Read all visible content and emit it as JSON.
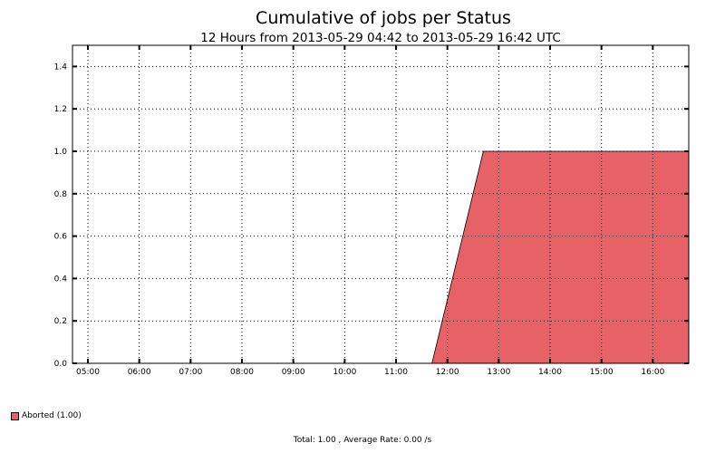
{
  "chart_data": {
    "type": "area",
    "title": "Cumulative of jobs per Status",
    "subtitle": "12 Hours from 2013-05-29 04:42 to 2013-05-29 16:42 UTC",
    "xlabel": "",
    "ylabel": "",
    "x_ticks": [
      "05:00",
      "06:00",
      "07:00",
      "08:00",
      "09:00",
      "10:00",
      "11:00",
      "12:00",
      "13:00",
      "14:00",
      "15:00",
      "16:00"
    ],
    "x_range_hours": [
      4.7,
      16.7
    ],
    "ylim": [
      0,
      1.5
    ],
    "y_ticks": [
      "0.0",
      "0.2",
      "0.4",
      "0.6",
      "0.8",
      "1.0",
      "1.2",
      "1.4"
    ],
    "y_tick_values": [
      0,
      0.2,
      0.4,
      0.6,
      0.8,
      1.0,
      1.2,
      1.4
    ],
    "grid": true,
    "series": [
      {
        "name": "Aborted",
        "color": "#e66266",
        "x_hours": [
          4.7,
          11.7,
          12.7,
          16.7
        ],
        "values": [
          0,
          0,
          1.0,
          1.0
        ]
      }
    ],
    "legend_position": "bottom-left"
  },
  "legend": [
    {
      "label": "Aborted (1.00)",
      "color": "#e66266"
    }
  ],
  "footer": "Total: 1.00 , Average Rate: 0.00 /s"
}
